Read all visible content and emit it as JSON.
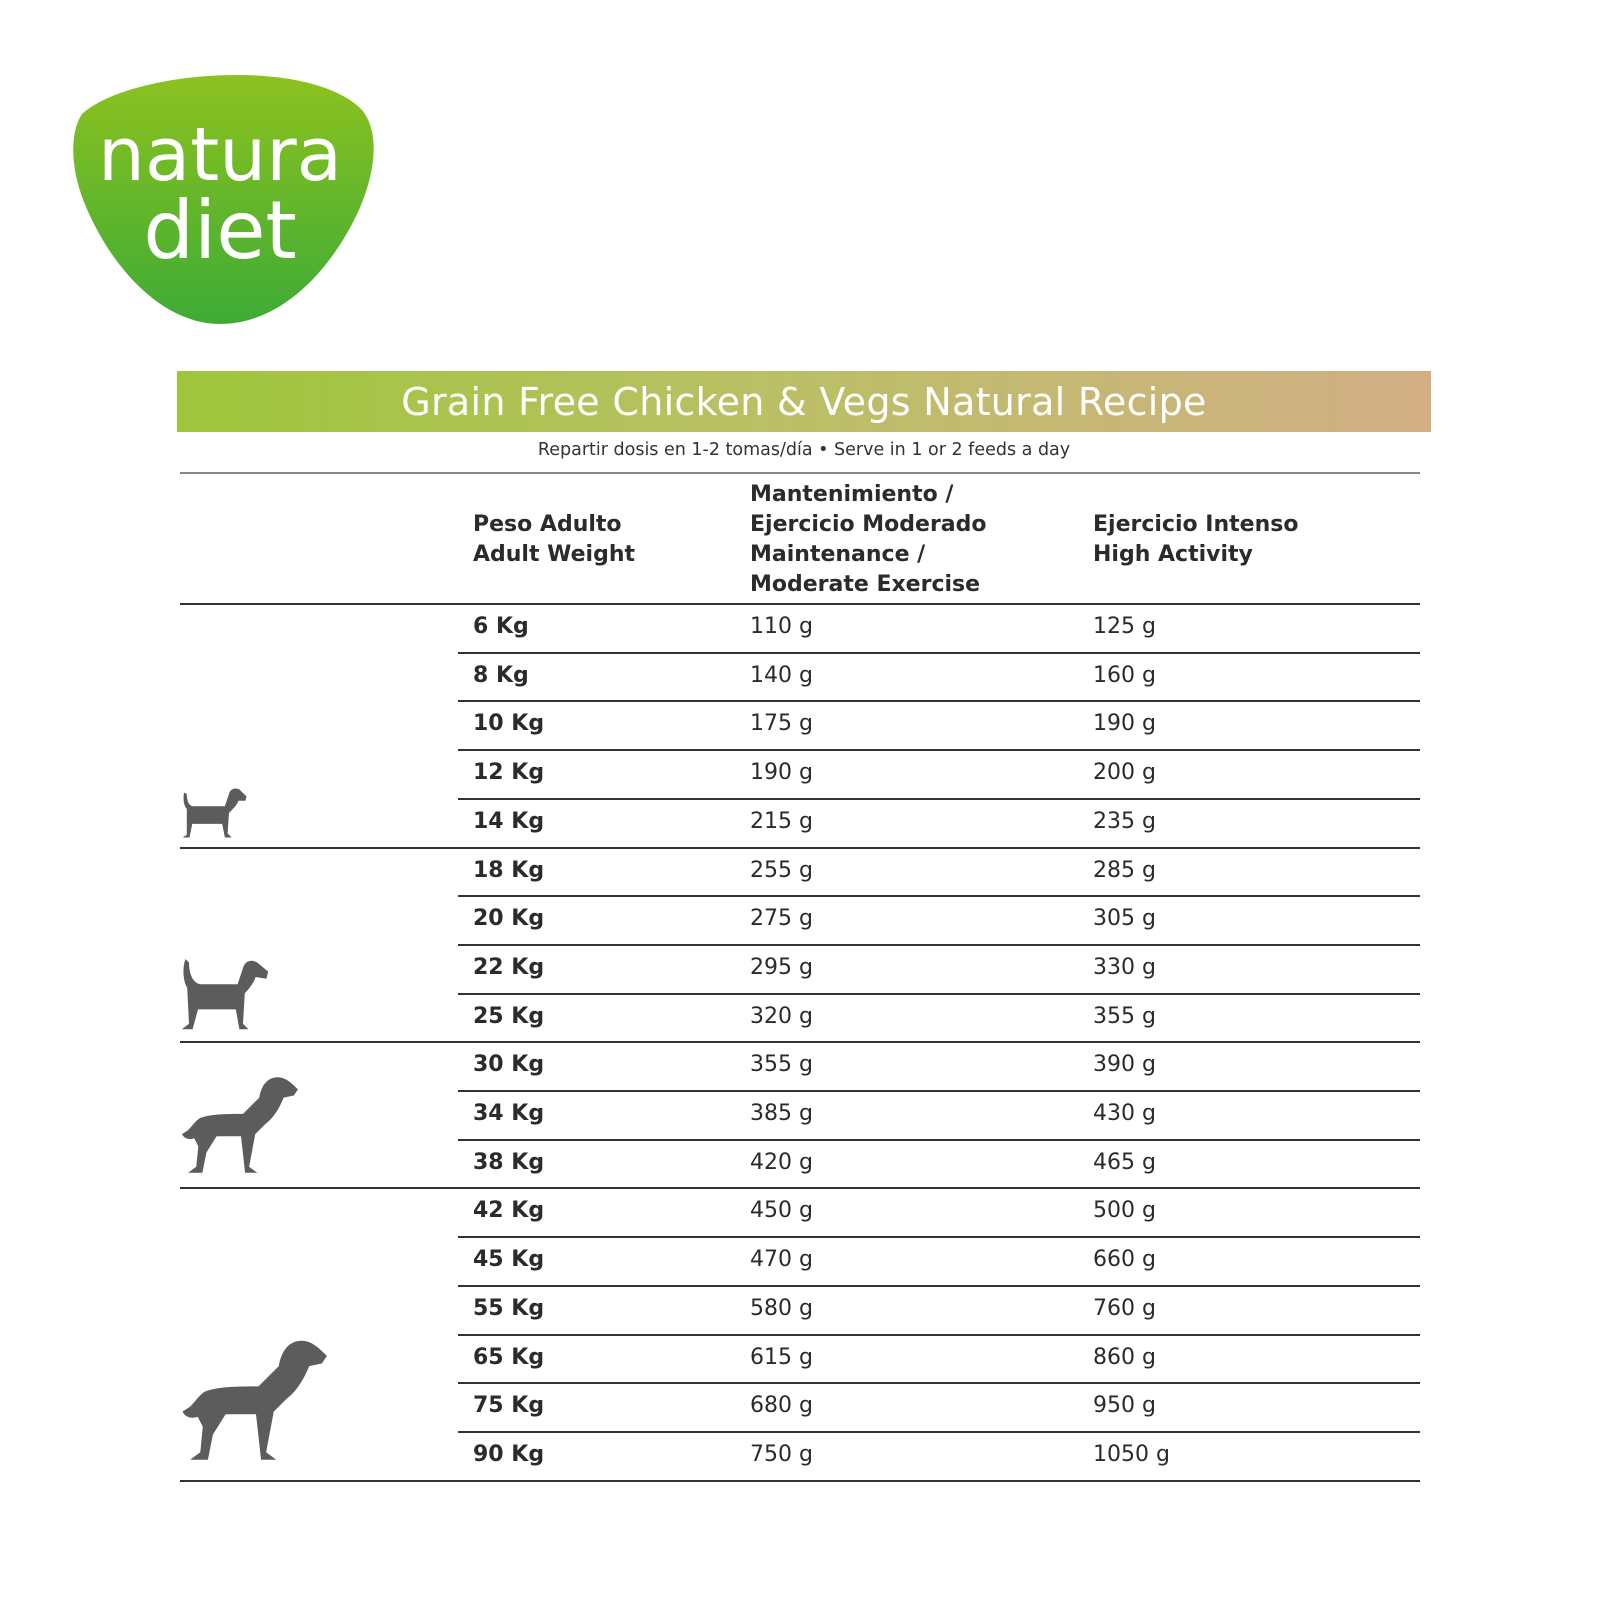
{
  "brand": {
    "line1": "natura",
    "line2": "diet",
    "color": "#5fb331"
  },
  "title": "Grain Free Chicken & Vegs Natural Recipe",
  "subtitle": "Repartir dosis en 1-2 tomas/día • Serve in 1 or 2 feeds a day",
  "columns": {
    "weight": "Peso Adulto\nAdult Weight",
    "maintenance": "Mantenimiento /\nEjercicio Moderado\nMaintenance /\nModerate Exercise",
    "high": "Ejercicio Intenso\nHigh Activity"
  },
  "icons": [
    "small-dog-icon",
    "medium-dog-icon",
    "large-dog-icon",
    "giant-dog-icon"
  ],
  "rows": [
    {
      "weight": "6 Kg",
      "maintenance": "110 g",
      "high": "125 g"
    },
    {
      "weight": "8 Kg",
      "maintenance": "140 g",
      "high": "160 g"
    },
    {
      "weight": "10 Kg",
      "maintenance": "175 g",
      "high": "190 g"
    },
    {
      "weight": "12 Kg",
      "maintenance": "190 g",
      "high": "200 g"
    },
    {
      "weight": "14 Kg",
      "maintenance": "215 g",
      "high": "235 g"
    },
    {
      "weight": "18 Kg",
      "maintenance": "255 g",
      "high": "285 g"
    },
    {
      "weight": "20 Kg",
      "maintenance": "275 g",
      "high": "305 g"
    },
    {
      "weight": "22 Kg",
      "maintenance": "295 g",
      "high": "330 g"
    },
    {
      "weight": "25 Kg",
      "maintenance": "320 g",
      "high": "355 g"
    },
    {
      "weight": "30 Kg",
      "maintenance": "355 g",
      "high": "390 g"
    },
    {
      "weight": "34 Kg",
      "maintenance": "385 g",
      "high": "430 g"
    },
    {
      "weight": "38 Kg",
      "maintenance": "420 g",
      "high": "465 g"
    },
    {
      "weight": "42 Kg",
      "maintenance": "450 g",
      "high": "500 g"
    },
    {
      "weight": "45 Kg",
      "maintenance": "470 g",
      "high": "660 g"
    },
    {
      "weight": "55 Kg",
      "maintenance": "580 g",
      "high": "760 g"
    },
    {
      "weight": "65 Kg",
      "maintenance": "615 g",
      "high": "860 g"
    },
    {
      "weight": "75 Kg",
      "maintenance": "680 g",
      "high": "950 g"
    },
    {
      "weight": "90 Kg",
      "maintenance": "750 g",
      "high": "1050 g"
    }
  ]
}
